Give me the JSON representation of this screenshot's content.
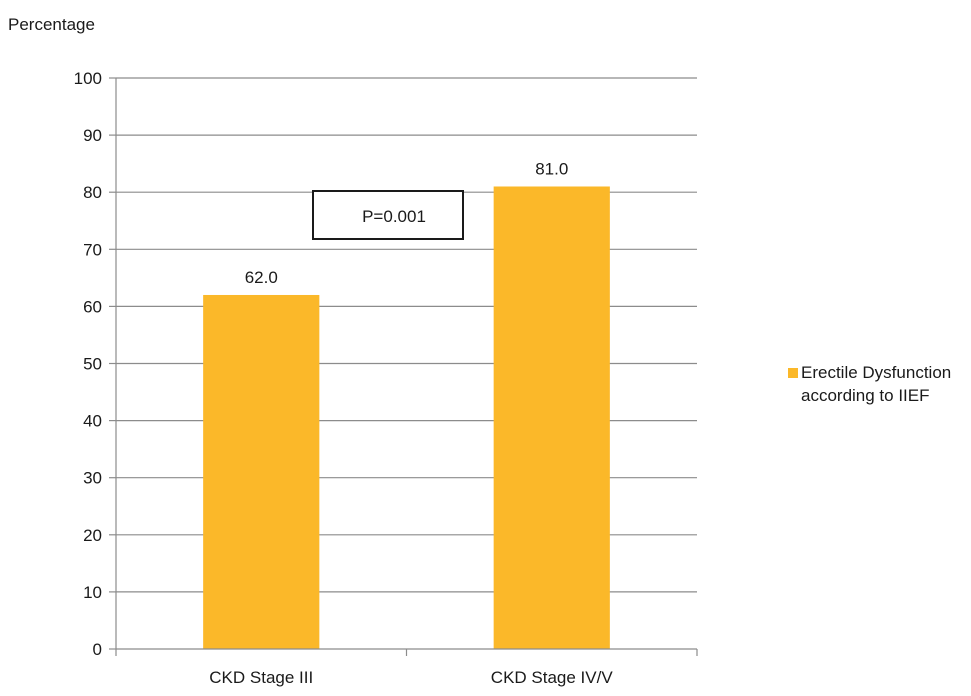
{
  "chart_data": {
    "type": "bar",
    "title": "",
    "xlabel": "",
    "ylabel": "Percentage",
    "categories": [
      "CKD Stage III",
      "CKD Stage IV/V"
    ],
    "series": [
      {
        "name": "Erectile Dysfunction according to IIEF",
        "values": [
          62.0,
          81.0
        ],
        "data_labels": [
          "62.0",
          "81.0"
        ],
        "color": "#FBB829"
      }
    ],
    "legend": {
      "lines": [
        "Erectile Dysfunction",
        "according to IIEF"
      ],
      "position": "right"
    },
    "ylim": [
      0,
      100
    ],
    "yticks": [
      0,
      10,
      20,
      30,
      40,
      50,
      60,
      70,
      80,
      90,
      100
    ],
    "grid": true,
    "annotation": "P=0.001"
  }
}
